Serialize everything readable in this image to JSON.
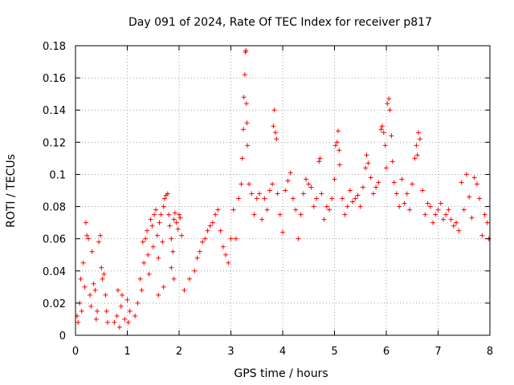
{
  "chart_data": {
    "type": "scatter",
    "title": "Day 091 of 2024, Rate Of TEC Index for receiver p817",
    "xlabel": "GPS time / hours",
    "ylabel": "ROTI / TECUs",
    "xlim": [
      0,
      8
    ],
    "ylim": [
      0,
      0.18
    ],
    "x_ticks": [
      0,
      1,
      2,
      3,
      4,
      5,
      6,
      7,
      8
    ],
    "y_ticks": [
      0,
      0.02,
      0.04,
      0.06,
      0.08,
      0.1,
      0.12,
      0.14,
      0.16,
      0.18
    ],
    "x_tick_labels": [
      "0",
      "1",
      "2",
      "3",
      "4",
      "5",
      "6",
      "7",
      "8"
    ],
    "y_tick_labels": [
      "0",
      "0.02",
      "0.04",
      "0.06",
      "0.08",
      "0.1",
      "0.12",
      "0.14",
      "0.16",
      "0.18"
    ],
    "grid": true,
    "marker": "+",
    "color": "#ff0000",
    "series": [
      {
        "name": "ROTI",
        "points": [
          [
            0.03,
            0.012
          ],
          [
            0.05,
            0.008
          ],
          [
            0.08,
            0.02
          ],
          [
            0.1,
            0.035
          ],
          [
            0.12,
            0.015
          ],
          [
            0.15,
            0.045
          ],
          [
            0.18,
            0.03
          ],
          [
            0.2,
            0.07
          ],
          [
            0.22,
            0.062
          ],
          [
            0.25,
            0.06
          ],
          [
            0.28,
            0.025
          ],
          [
            0.3,
            0.018
          ],
          [
            0.32,
            0.052
          ],
          [
            0.35,
            0.032
          ],
          [
            0.38,
            0.028
          ],
          [
            0.4,
            0.01
          ],
          [
            0.42,
            0.015
          ],
          [
            0.45,
            0.058
          ],
          [
            0.48,
            0.062
          ],
          [
            0.5,
            0.042
          ],
          [
            0.52,
            0.035
          ],
          [
            0.55,
            0.038
          ],
          [
            0.58,
            0.025
          ],
          [
            0.6,
            0.015
          ],
          [
            0.62,
            0.008
          ],
          [
            0.75,
            0.008
          ],
          [
            0.8,
            0.012
          ],
          [
            0.82,
            0.028
          ],
          [
            0.85,
            0.005
          ],
          [
            0.88,
            0.018
          ],
          [
            0.9,
            0.025
          ],
          [
            0.95,
            0.01
          ],
          [
            1.0,
            0.022
          ],
          [
            1.02,
            0.008
          ],
          [
            1.05,
            0.015
          ],
          [
            1.15,
            0.012
          ],
          [
            1.2,
            0.02
          ],
          [
            1.25,
            0.035
          ],
          [
            1.28,
            0.028
          ],
          [
            1.3,
            0.058
          ],
          [
            1.32,
            0.045
          ],
          [
            1.35,
            0.06
          ],
          [
            1.38,
            0.065
          ],
          [
            1.4,
            0.05
          ],
          [
            1.42,
            0.038
          ],
          [
            1.45,
            0.072
          ],
          [
            1.48,
            0.068
          ],
          [
            1.5,
            0.055
          ],
          [
            1.52,
            0.075
          ],
          [
            1.55,
            0.078
          ],
          [
            1.58,
            0.062
          ],
          [
            1.6,
            0.048
          ],
          [
            1.62,
            0.07
          ],
          [
            1.65,
            0.075
          ],
          [
            1.68,
            0.058
          ],
          [
            1.7,
            0.08
          ],
          [
            1.72,
            0.085
          ],
          [
            1.75,
            0.087
          ],
          [
            1.78,
            0.088
          ],
          [
            1.8,
            0.075
          ],
          [
            1.82,
            0.068
          ],
          [
            1.85,
            0.06
          ],
          [
            1.88,
            0.052
          ],
          [
            1.9,
            0.072
          ],
          [
            1.92,
            0.076
          ],
          [
            1.95,
            0.07
          ],
          [
            1.98,
            0.066
          ],
          [
            2.0,
            0.075
          ],
          [
            2.02,
            0.073
          ],
          [
            2.05,
            0.062
          ],
          [
            1.85,
            0.042
          ],
          [
            1.9,
            0.035
          ],
          [
            1.7,
            0.03
          ],
          [
            1.6,
            0.025
          ],
          [
            2.1,
            0.028
          ],
          [
            2.2,
            0.035
          ],
          [
            2.3,
            0.04
          ],
          [
            2.35,
            0.048
          ],
          [
            2.4,
            0.052
          ],
          [
            2.45,
            0.058
          ],
          [
            2.5,
            0.06
          ],
          [
            2.55,
            0.065
          ],
          [
            2.6,
            0.068
          ],
          [
            2.65,
            0.07
          ],
          [
            2.7,
            0.075
          ],
          [
            2.75,
            0.078
          ],
          [
            2.8,
            0.065
          ],
          [
            2.85,
            0.055
          ],
          [
            2.9,
            0.05
          ],
          [
            2.95,
            0.045
          ],
          [
            3.0,
            0.06
          ],
          [
            3.05,
            0.078
          ],
          [
            3.1,
            0.06
          ],
          [
            3.15,
            0.085
          ],
          [
            3.2,
            0.094
          ],
          [
            3.22,
            0.11
          ],
          [
            3.24,
            0.128
          ],
          [
            3.25,
            0.148
          ],
          [
            3.27,
            0.162
          ],
          [
            3.28,
            0.176
          ],
          [
            3.29,
            0.177
          ],
          [
            3.3,
            0.144
          ],
          [
            3.31,
            0.132
          ],
          [
            3.32,
            0.118
          ],
          [
            3.35,
            0.094
          ],
          [
            3.4,
            0.088
          ],
          [
            3.45,
            0.075
          ],
          [
            3.5,
            0.085
          ],
          [
            3.55,
            0.088
          ],
          [
            3.6,
            0.072
          ],
          [
            3.65,
            0.085
          ],
          [
            3.7,
            0.078
          ],
          [
            3.75,
            0.09
          ],
          [
            3.8,
            0.094
          ],
          [
            3.82,
            0.13
          ],
          [
            3.84,
            0.14
          ],
          [
            3.86,
            0.126
          ],
          [
            3.88,
            0.122
          ],
          [
            3.9,
            0.088
          ],
          [
            3.95,
            0.075
          ],
          [
            4.0,
            0.064
          ],
          [
            4.05,
            0.09
          ],
          [
            4.1,
            0.096
          ],
          [
            4.15,
            0.101
          ],
          [
            4.2,
            0.085
          ],
          [
            4.25,
            0.078
          ],
          [
            4.3,
            0.06
          ],
          [
            4.35,
            0.075
          ],
          [
            4.4,
            0.088
          ],
          [
            4.45,
            0.097
          ],
          [
            4.5,
            0.094
          ],
          [
            4.55,
            0.092
          ],
          [
            4.6,
            0.08
          ],
          [
            4.65,
            0.085
          ],
          [
            4.7,
            0.108
          ],
          [
            4.72,
            0.11
          ],
          [
            4.75,
            0.088
          ],
          [
            4.8,
            0.072
          ],
          [
            4.85,
            0.08
          ],
          [
            4.9,
            0.078
          ],
          [
            4.95,
            0.085
          ],
          [
            5.0,
            0.097
          ],
          [
            5.02,
            0.118
          ],
          [
            5.05,
            0.12
          ],
          [
            5.07,
            0.127
          ],
          [
            5.09,
            0.115
          ],
          [
            5.1,
            0.106
          ],
          [
            5.15,
            0.085
          ],
          [
            5.2,
            0.075
          ],
          [
            5.25,
            0.08
          ],
          [
            5.3,
            0.09
          ],
          [
            5.35,
            0.083
          ],
          [
            5.4,
            0.085
          ],
          [
            5.45,
            0.087
          ],
          [
            5.5,
            0.08
          ],
          [
            5.55,
            0.092
          ],
          [
            5.6,
            0.104
          ],
          [
            5.62,
            0.112
          ],
          [
            5.65,
            0.107
          ],
          [
            5.7,
            0.098
          ],
          [
            5.75,
            0.088
          ],
          [
            5.8,
            0.092
          ],
          [
            5.85,
            0.095
          ],
          [
            5.9,
            0.128
          ],
          [
            5.92,
            0.13
          ],
          [
            5.95,
            0.126
          ],
          [
            5.98,
            0.118
          ],
          [
            6.0,
            0.104
          ],
          [
            6.02,
            0.144
          ],
          [
            6.05,
            0.147
          ],
          [
            6.07,
            0.14
          ],
          [
            6.1,
            0.124
          ],
          [
            6.12,
            0.108
          ],
          [
            6.15,
            0.095
          ],
          [
            6.2,
            0.088
          ],
          [
            6.25,
            0.08
          ],
          [
            6.3,
            0.097
          ],
          [
            6.35,
            0.082
          ],
          [
            6.4,
            0.088
          ],
          [
            6.45,
            0.078
          ],
          [
            6.5,
            0.094
          ],
          [
            6.55,
            0.11
          ],
          [
            6.58,
            0.118
          ],
          [
            6.6,
            0.112
          ],
          [
            6.62,
            0.126
          ],
          [
            6.65,
            0.122
          ],
          [
            6.7,
            0.09
          ],
          [
            6.75,
            0.075
          ],
          [
            6.8,
            0.082
          ],
          [
            6.85,
            0.08
          ],
          [
            6.9,
            0.07
          ],
          [
            6.95,
            0.075
          ],
          [
            7.0,
            0.078
          ],
          [
            7.05,
            0.082
          ],
          [
            7.1,
            0.072
          ],
          [
            7.15,
            0.075
          ],
          [
            7.2,
            0.078
          ],
          [
            7.25,
            0.072
          ],
          [
            7.3,
            0.068
          ],
          [
            7.35,
            0.07
          ],
          [
            7.4,
            0.065
          ],
          [
            7.45,
            0.095
          ],
          [
            7.5,
            0.078
          ],
          [
            7.55,
            0.1
          ],
          [
            7.6,
            0.086
          ],
          [
            7.65,
            0.073
          ],
          [
            7.7,
            0.098
          ],
          [
            7.75,
            0.094
          ],
          [
            7.8,
            0.085
          ],
          [
            7.85,
            0.062
          ],
          [
            7.9,
            0.075
          ],
          [
            7.95,
            0.07
          ],
          [
            7.98,
            0.06
          ]
        ]
      }
    ]
  }
}
